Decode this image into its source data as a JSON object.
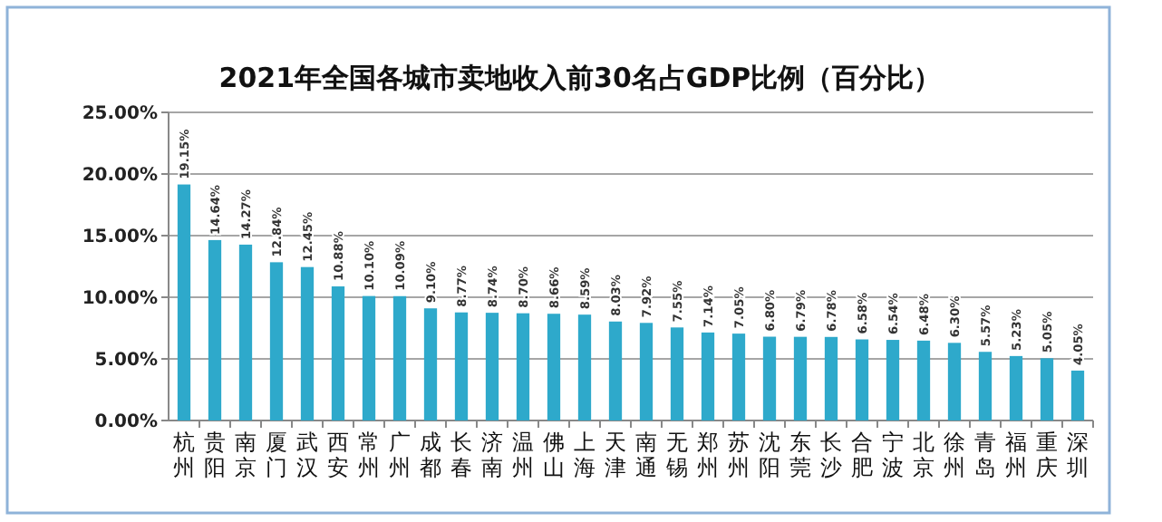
{
  "chart_data": {
    "type": "bar",
    "title": "2021年全国各城市卖地收入前30名占GDP比例（百分比）",
    "categories": [
      "杭州",
      "贵阳",
      "南京",
      "厦门",
      "武汉",
      "西安",
      "常州",
      "广州",
      "成都",
      "长春",
      "济南",
      "温州",
      "佛山",
      "上海",
      "天津",
      "南通",
      "无锡",
      "郑州",
      "苏州",
      "沈阳",
      "东莞",
      "长沙",
      "合肥",
      "宁波",
      "北京",
      "徐州",
      "青岛",
      "福州",
      "重庆",
      "深圳"
    ],
    "values": [
      19.15,
      14.64,
      14.27,
      12.84,
      12.45,
      10.88,
      10.1,
      10.09,
      9.1,
      8.77,
      8.74,
      8.7,
      8.66,
      8.59,
      8.03,
      7.92,
      7.55,
      7.14,
      7.05,
      6.8,
      6.79,
      6.78,
      6.58,
      6.54,
      6.48,
      6.3,
      5.57,
      5.23,
      5.05,
      4.05
    ],
    "value_labels": [
      "19.15%",
      "14.64%",
      "14.27%",
      "12.84%",
      "12.45%",
      "10.88%",
      "10.10%",
      "10.09%",
      "9.10%",
      "8.77%",
      "8.74%",
      "8.70%",
      "8.66%",
      "8.59%",
      "8.03%",
      "7.92%",
      "7.55%",
      "7.14%",
      "7.05%",
      "6.80%",
      "6.79%",
      "6.78%",
      "6.58%",
      "6.54%",
      "6.48%",
      "6.30%",
      "5.57%",
      "5.23%",
      "5.05%",
      "4.05%"
    ],
    "color": "#2ea9cb",
    "ylim": [
      0,
      25
    ],
    "yticks": [
      {
        "value": 0,
        "label": "0.00%"
      },
      {
        "value": 5,
        "label": "5.00%"
      },
      {
        "value": 10,
        "label": "10.00%"
      },
      {
        "value": 15,
        "label": "15.00%"
      },
      {
        "value": 20,
        "label": "20.00%"
      },
      {
        "value": 25,
        "label": "25.00%"
      }
    ],
    "grid": "y"
  }
}
